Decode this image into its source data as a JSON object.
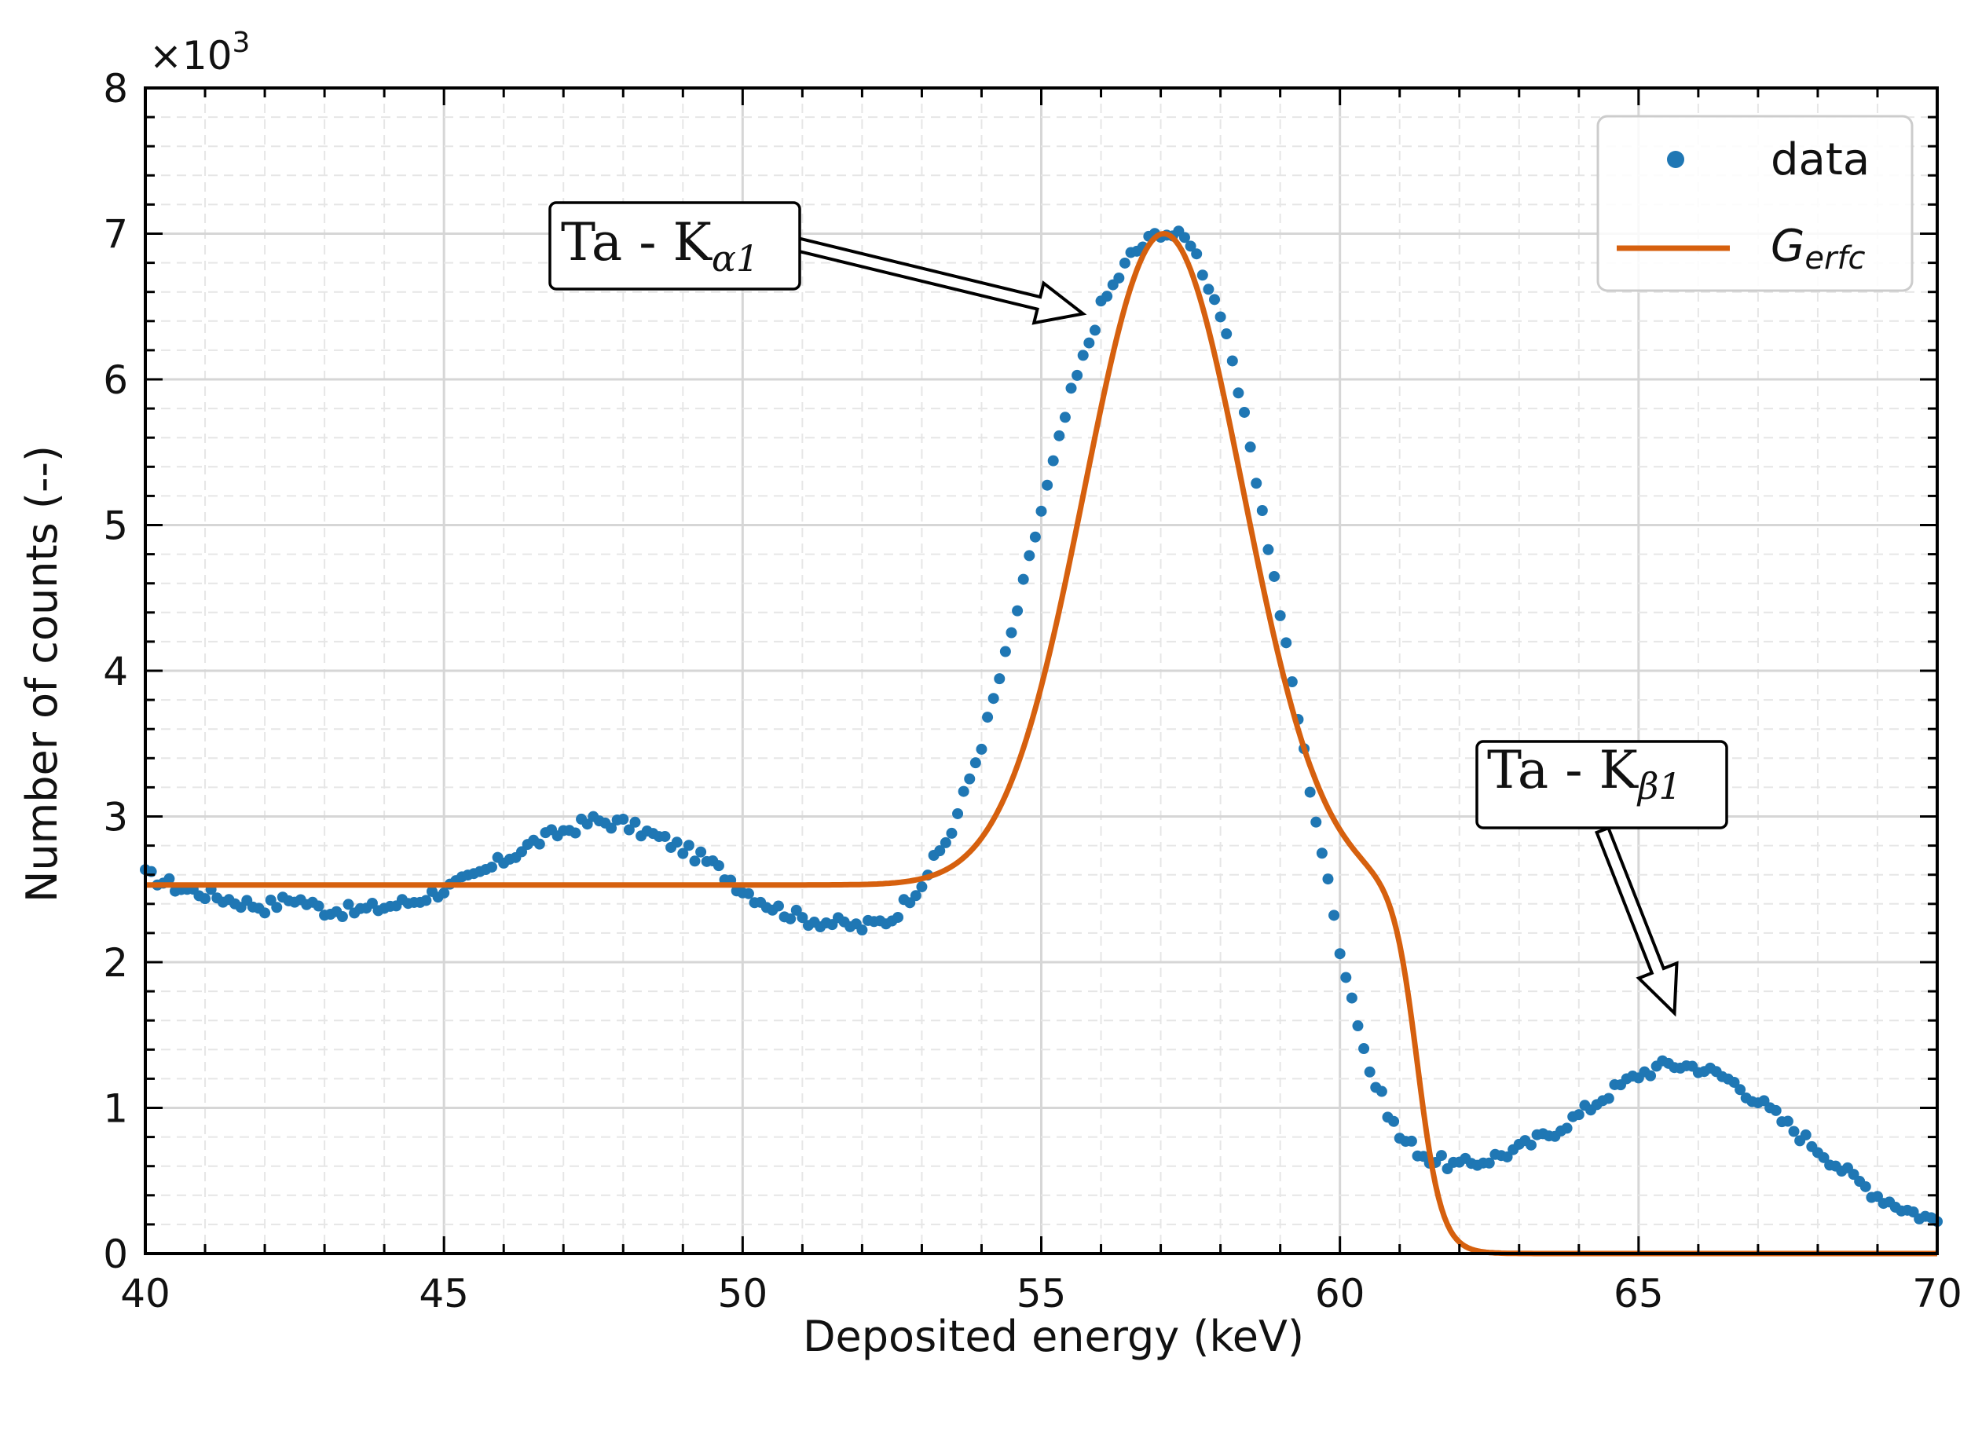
{
  "chart_data": {
    "type": "scatter",
    "title": "",
    "xlabel": "Deposited energy (keV)",
    "ylabel": "Number of counts (--)",
    "xlim": [
      40,
      70
    ],
    "ylim": [
      0,
      8
    ],
    "y_multiplier_label": "×10",
    "y_multiplier_exp": "3",
    "xticks": [
      "40",
      "45",
      "50",
      "55",
      "60",
      "65",
      "70"
    ],
    "yticks": [
      "0",
      "1",
      "2",
      "3",
      "4",
      "5",
      "6",
      "7",
      "8"
    ],
    "grid": true,
    "legend_position": "top-right",
    "colors": {
      "data": "#1f77b4",
      "fit": "#d6600e"
    },
    "series": [
      {
        "name": "data",
        "kind": "points",
        "points": [
          [
            40.0,
            2.6
          ],
          [
            40.5,
            2.52
          ],
          [
            41.0,
            2.47
          ],
          [
            41.5,
            2.42
          ],
          [
            42.0,
            2.38
          ],
          [
            42.5,
            2.44
          ],
          [
            43.0,
            2.36
          ],
          [
            43.5,
            2.35
          ],
          [
            44.0,
            2.38
          ],
          [
            44.5,
            2.42
          ],
          [
            45.0,
            2.5
          ],
          [
            45.5,
            2.58
          ],
          [
            46.0,
            2.7
          ],
          [
            46.5,
            2.82
          ],
          [
            47.0,
            2.9
          ],
          [
            47.5,
            2.97
          ],
          [
            48.0,
            2.95
          ],
          [
            48.5,
            2.87
          ],
          [
            49.0,
            2.78
          ],
          [
            49.5,
            2.67
          ],
          [
            50.0,
            2.5
          ],
          [
            50.5,
            2.38
          ],
          [
            51.0,
            2.3
          ],
          [
            51.5,
            2.27
          ],
          [
            52.0,
            2.24
          ],
          [
            52.5,
            2.3
          ],
          [
            53.0,
            2.55
          ],
          [
            53.5,
            2.9
          ],
          [
            54.0,
            3.5
          ],
          [
            54.5,
            4.25
          ],
          [
            55.0,
            5.1
          ],
          [
            55.5,
            5.9
          ],
          [
            56.0,
            6.5
          ],
          [
            56.5,
            6.85
          ],
          [
            57.0,
            7.02
          ],
          [
            57.5,
            6.95
          ],
          [
            58.0,
            6.45
          ],
          [
            58.5,
            5.55
          ],
          [
            59.0,
            4.4
          ],
          [
            59.5,
            3.2
          ],
          [
            60.0,
            2.1
          ],
          [
            60.5,
            1.25
          ],
          [
            61.0,
            0.8
          ],
          [
            61.5,
            0.65
          ],
          [
            62.0,
            0.6
          ],
          [
            62.5,
            0.65
          ],
          [
            63.0,
            0.72
          ],
          [
            63.5,
            0.82
          ],
          [
            64.0,
            0.95
          ],
          [
            64.5,
            1.1
          ],
          [
            65.0,
            1.23
          ],
          [
            65.5,
            1.3
          ],
          [
            66.0,
            1.28
          ],
          [
            66.5,
            1.2
          ],
          [
            67.0,
            1.05
          ],
          [
            67.5,
            0.88
          ],
          [
            68.0,
            0.72
          ],
          [
            68.5,
            0.55
          ],
          [
            69.0,
            0.4
          ],
          [
            69.5,
            0.3
          ],
          [
            70.0,
            0.22
          ]
        ]
      },
      {
        "name": "G_erfc",
        "kind": "line",
        "baseline": 2.53,
        "peak": {
          "center": 57.05,
          "amplitude": 4.47,
          "sigma": 1.33
        },
        "tail_drop": {
          "position": 61.3,
          "width": 0.8
        }
      }
    ],
    "legend": [
      {
        "label": "data",
        "marker": "point"
      },
      {
        "label_main": "G",
        "label_sub": "erfc",
        "marker": "line"
      }
    ],
    "annotations": [
      {
        "text_main": "Ta - K",
        "text_sub": "α1",
        "target": [
          55.7,
          6.45
        ]
      },
      {
        "text_main": "Ta - K",
        "text_sub": "β1",
        "target": [
          65.6,
          1.65
        ]
      }
    ]
  }
}
